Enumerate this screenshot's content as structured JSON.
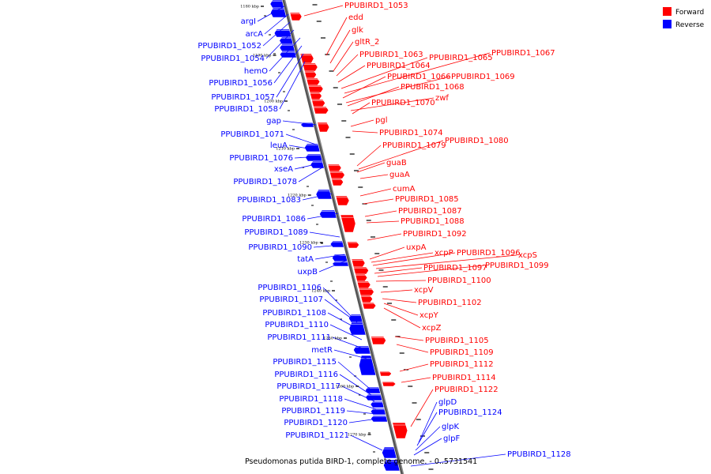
{
  "caption": "Pseudomonas putida BIRD-1, complete genome. - 0..5731541",
  "colors": {
    "forward": "#ff0000",
    "reverse": "#0000ff",
    "backbone": "#888888"
  },
  "legend": [
    {
      "label": "Forward",
      "color": "#ff0000"
    },
    {
      "label": "Reverse",
      "color": "#0000ff"
    }
  ],
  "ticks": [
    "1180 kbp",
    "1190 kbp",
    "1200 kbp",
    "1210 kbp",
    "1220 kbp",
    "1230 kbp",
    "1240 kbp",
    "1250 kbp",
    "1260 kbp",
    "1270 kbp"
  ],
  "forward_labels": [
    "PPUBIRD1_1053",
    "edd",
    "glk",
    "gltR_2",
    "PPUBIRD1_1063",
    "PPUBIRD1_1064",
    "PPUBIRD1_1065",
    "PPUBIRD1_1067",
    "PPUBIRD1_1066",
    "PPUBIRD1_1069",
    "PPUBIRD1_1068",
    "zwf",
    "PPUBIRD1_1070",
    "pgl",
    "PPUBIRD1_1074",
    "PPUBIRD1_1079",
    "PPUBIRD1_1080",
    "guaB",
    "guaA",
    "cumA",
    "PPUBIRD1_1085",
    "PPUBIRD1_1087",
    "PPUBIRD1_1088",
    "PPUBIRD1_1092",
    "uxpA",
    "xcpP",
    "PPUBIRD1_1096",
    "xcpS",
    "PPUBIRD1_1097",
    "PPUBIRD1_1099",
    "PPUBIRD1_1100",
    "xcpV",
    "PPUBIRD1_1102",
    "xcpY",
    "xcpZ",
    "PPUBIRD1_1105",
    "PPUBIRD1_1109",
    "PPUBIRD1_1112",
    "PPUBIRD1_1114",
    "PPUBIRD1_1122"
  ],
  "reverse_labels": [
    "argI",
    "arcA",
    "PPUBIRD1_1052",
    "PPUBIRD1_1054",
    "hemO",
    "PPUBIRD1_1056",
    "PPUBIRD1_1057",
    "PPUBIRD1_1058",
    "gap",
    "PPUBIRD1_1071",
    "leuA",
    "PPUBIRD1_1076",
    "xseA",
    "PPUBIRD1_1078",
    "PPUBIRD1_1083",
    "PPUBIRD1_1086",
    "PPUBIRD1_1089",
    "PPUBIRD1_1090",
    "tatA",
    "uxpB",
    "PPUBIRD1_1106",
    "PPUBIRD1_1107",
    "PPUBIRD1_1108",
    "PPUBIRD1_1110",
    "PPUBIRD1_1111",
    "metR",
    "PPUBIRD1_1115",
    "PPUBIRD1_1116",
    "PPUBIRD1_1117",
    "PPUBIRD1_1118",
    "PPUBIRD1_1119",
    "PPUBIRD1_1120",
    "PPUBIRD1_1121",
    "glpD",
    "PPUBIRD1_1124",
    "glpK",
    "glpF",
    "PPUBIRD1_1128"
  ]
}
